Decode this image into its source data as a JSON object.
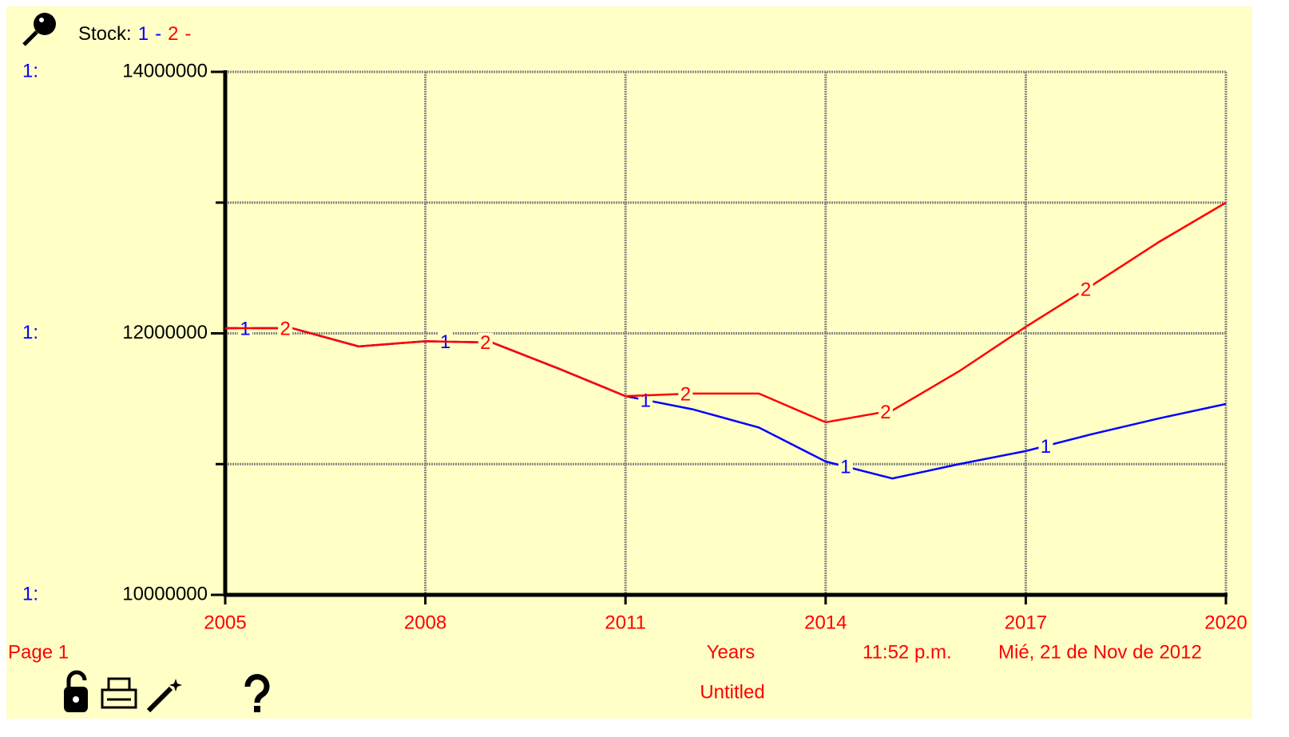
{
  "chart_data": {
    "type": "line",
    "legend_label": "Stock:",
    "legend_separator": "-",
    "axis_prefix": "1:",
    "x": [
      2005,
      2006,
      2007,
      2008,
      2009,
      2010,
      2011,
      2012,
      2013,
      2014,
      2015,
      2016,
      2017,
      2018,
      2019,
      2020
    ],
    "series": [
      {
        "name": "1",
        "color": "#0000ff",
        "values": [
          12040000,
          12040000,
          11900000,
          11940000,
          11930000,
          11730000,
          11520000,
          11420000,
          11280000,
          11020000,
          10890000,
          11000000,
          11100000,
          11230000,
          11350000,
          11460000
        ]
      },
      {
        "name": "2",
        "color": "#ff0000",
        "values": [
          12040000,
          12040000,
          11900000,
          11940000,
          11930000,
          11730000,
          11520000,
          11540000,
          11540000,
          11320000,
          11410000,
          11710000,
          12050000,
          12370000,
          12700000,
          13000000
        ]
      }
    ],
    "xlim": [
      2005,
      2020
    ],
    "xticks": [
      2005,
      2008,
      2011,
      2014,
      2017,
      2020
    ],
    "ylim": [
      10000000,
      14000000
    ],
    "yticks": [
      10000000,
      12000000,
      14000000
    ],
    "minor_yticks": [
      11000000,
      13000000
    ],
    "grid": true,
    "x_label": "Years",
    "page_label": "Page 1",
    "time": "11:52 p.m.",
    "date": "Mié, 21 de Nov de 2012",
    "footer": "Untitled"
  }
}
